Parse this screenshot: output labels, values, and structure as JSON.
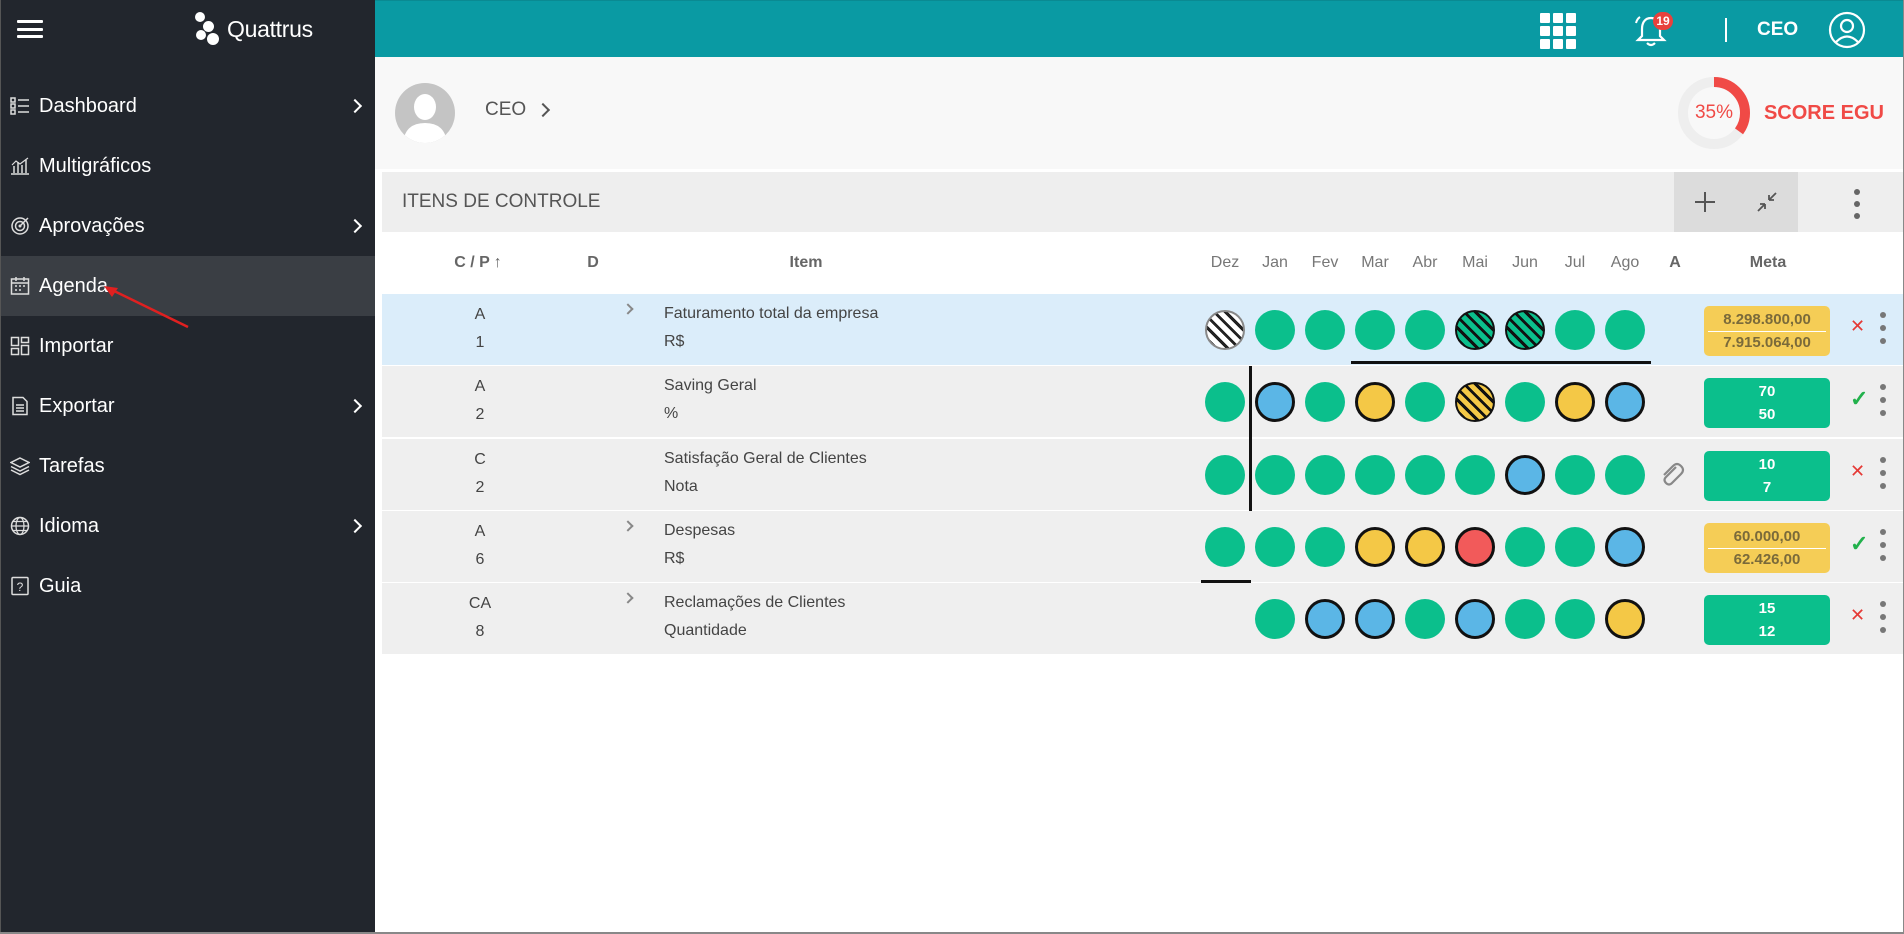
{
  "app": {
    "name": "Quattrus"
  },
  "sidebar": {
    "items": [
      {
        "label": "Dashboard",
        "icon": "list-icon",
        "has_submenu": true
      },
      {
        "label": "Multigráficos",
        "icon": "bar-chart-icon",
        "has_submenu": false
      },
      {
        "label": "Aprovações",
        "icon": "target-icon",
        "has_submenu": true
      },
      {
        "label": "Agenda",
        "icon": "calendar-icon",
        "has_submenu": false,
        "active": true
      },
      {
        "label": "Importar",
        "icon": "grid-icon",
        "has_submenu": false
      },
      {
        "label": "Exportar",
        "icon": "document-icon",
        "has_submenu": true
      },
      {
        "label": "Tarefas",
        "icon": "layers-icon",
        "has_submenu": false
      },
      {
        "label": "Idioma",
        "icon": "globe-icon",
        "has_submenu": true
      },
      {
        "label": "Guia",
        "icon": "help-icon",
        "has_submenu": false
      }
    ]
  },
  "topbar": {
    "notifications": "19",
    "user": "CEO"
  },
  "header": {
    "breadcrumb": "CEO",
    "score_percent": "35%",
    "score_value": 0.35,
    "score_label": "SCORE EGU"
  },
  "section": {
    "title": "ITENS DE CONTROLE"
  },
  "table": {
    "columns": {
      "cp": "C / P",
      "d": "D",
      "item": "Item",
      "a": "A",
      "meta": "Meta"
    },
    "months": [
      "Dez",
      "Jan",
      "Fev",
      "Mar",
      "Abr",
      "Mai",
      "Jun",
      "Jul",
      "Ago"
    ],
    "rows": [
      {
        "cp_top": "A",
        "cp_bot": "1",
        "name": "Faturamento total da empresa",
        "unit": "R$",
        "expandable": true,
        "highlight": true,
        "statuses": [
          "hatch-white",
          "green",
          "green",
          "green",
          "green",
          "hatch-green",
          "hatch-green",
          "green",
          "green"
        ],
        "meta_color": "yellow",
        "meta_top": "8.298.800,00",
        "meta_bottom": "7.915.064,00",
        "result": "x",
        "attachment": false
      },
      {
        "cp_top": "A",
        "cp_bot": "2",
        "name": "Saving Geral",
        "unit": "%",
        "expandable": false,
        "highlight": false,
        "statuses": [
          "green",
          "blue",
          "green",
          "yellow",
          "green",
          "hatch-yellow",
          "green",
          "yellow",
          "blue"
        ],
        "meta_color": "green",
        "meta_top": "70",
        "meta_bottom": "50",
        "result": "ok",
        "attachment": false
      },
      {
        "cp_top": "C",
        "cp_bot": "2",
        "name": "Satisfação Geral de Clientes",
        "unit": "Nota",
        "expandable": false,
        "highlight": false,
        "statuses": [
          "green",
          "green",
          "green",
          "green",
          "green",
          "green",
          "blue",
          "green",
          "green"
        ],
        "meta_color": "green",
        "meta_top": "10",
        "meta_bottom": "7",
        "result": "x",
        "attachment": true
      },
      {
        "cp_top": "A",
        "cp_bot": "6",
        "name": "Despesas",
        "unit": "R$",
        "expandable": true,
        "highlight": false,
        "statuses": [
          "green",
          "green",
          "green",
          "yellow",
          "yellow",
          "red",
          "green",
          "green",
          "blue"
        ],
        "meta_color": "yellow",
        "meta_top": "60.000,00",
        "meta_bottom": "62.426,00",
        "result": "ok",
        "attachment": false
      },
      {
        "cp_top": "CA",
        "cp_bot": "8",
        "name": "Reclamações de Clientes",
        "unit": "Quantidade",
        "expandable": true,
        "highlight": false,
        "statuses": [
          null,
          "green",
          "blue",
          "blue",
          "green",
          "blue",
          "green",
          "green",
          "yellow"
        ],
        "meta_color": "green",
        "meta_top": "15",
        "meta_bottom": "12",
        "result": "x",
        "attachment": false
      }
    ]
  },
  "colors": {
    "teal": "#0a9aa3",
    "sidebar": "#22262d",
    "green": "#0bbf8c",
    "blue": "#5bb6e6",
    "yellow": "#f4c846",
    "red": "#f25a5a",
    "score": "#f04a46"
  }
}
